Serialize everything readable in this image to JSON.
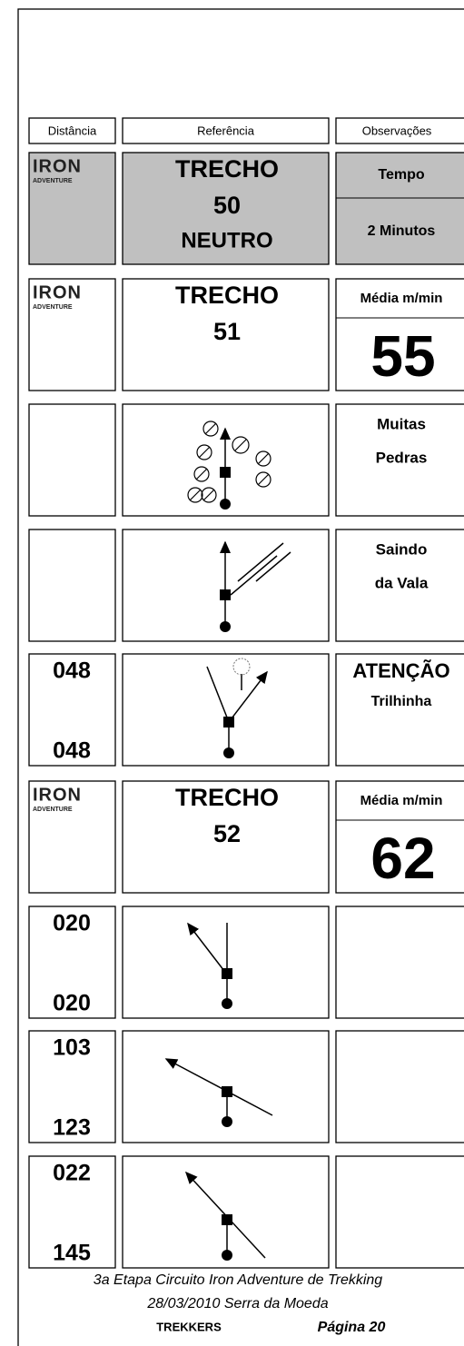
{
  "header": {
    "columns": [
      "Distância",
      "Referência",
      "Observações"
    ]
  },
  "rows": [
    {
      "logo": [
        "IRON",
        "ADVENTURE"
      ],
      "reference": [
        "TRECHO",
        "50",
        "NEUTRO"
      ],
      "observations": [
        "Tempo",
        "2 Minutos"
      ],
      "style": "shaded-split"
    },
    {
      "logo": [
        "IRON",
        "ADVENTURE"
      ],
      "reference": [
        "TRECHO",
        "51"
      ],
      "observations": [
        "Média m/min",
        "55"
      ],
      "style": "speed"
    },
    {
      "observations": [
        "Muitas",
        "Pedras"
      ]
    },
    {
      "observations": [
        "Saindo",
        "da Vala"
      ]
    },
    {
      "distance": [
        "048",
        "048"
      ],
      "observations": [
        "ATENÇÃO",
        "Trilhinha"
      ],
      "style": "attention"
    },
    {
      "logo": [
        "IRON",
        "ADVENTURE"
      ],
      "reference": [
        "TRECHO",
        "52"
      ],
      "observations": [
        "Média m/min",
        "62"
      ],
      "style": "speed"
    },
    {
      "distance": [
        "020",
        "020"
      ]
    },
    {
      "distance": [
        "103",
        "123"
      ]
    },
    {
      "distance": [
        "022",
        "145"
      ]
    }
  ],
  "footer": {
    "line1": "3a Etapa Circuito Iron Adventure de Trekking",
    "line2": "28/03/2010  Serra da Moeda",
    "team": "TREKKERS",
    "page": "Página 20"
  }
}
